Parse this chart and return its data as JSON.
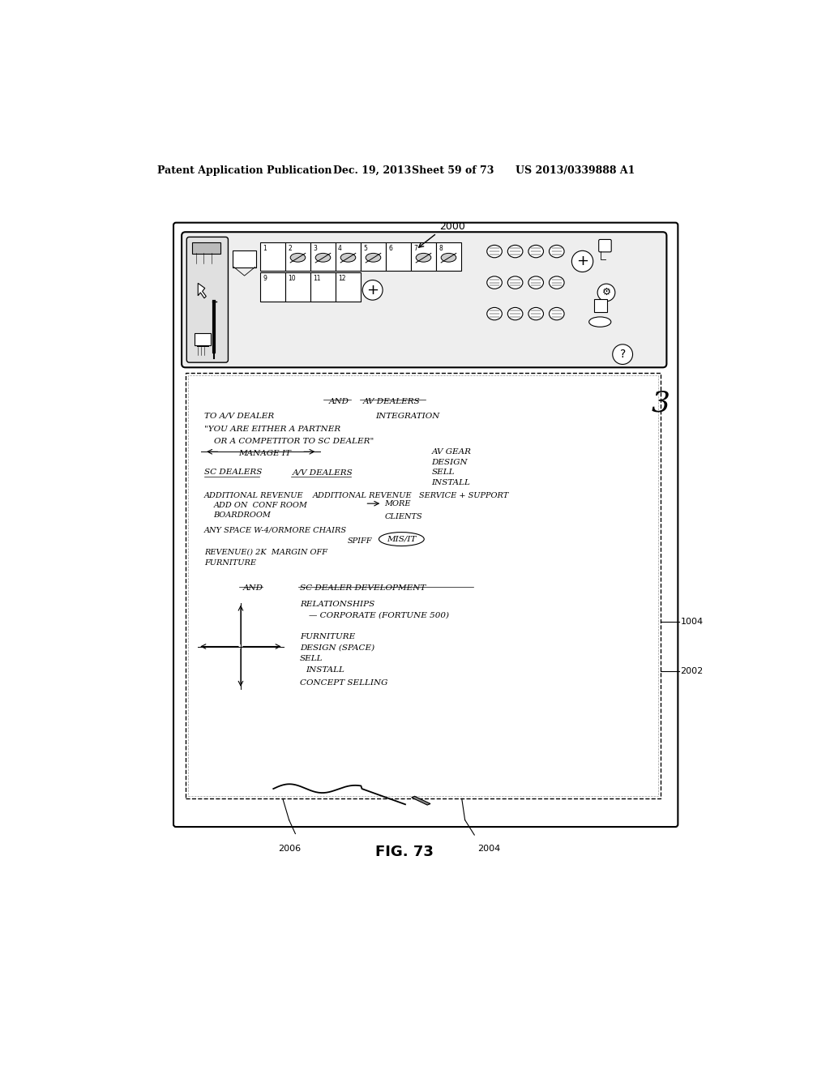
{
  "bg_color": "#ffffff",
  "header_text1": "Patent Application Publication",
  "header_text2": "Dec. 19, 2013",
  "header_text3": "Sheet 59 of 73",
  "header_text4": "US 2013/0339888 A1",
  "fig_label": "FIG. 73",
  "label_2000": "2000",
  "label_2002": "2002",
  "label_2004": "2004",
  "label_2006": "2006",
  "label_1004": "1004"
}
